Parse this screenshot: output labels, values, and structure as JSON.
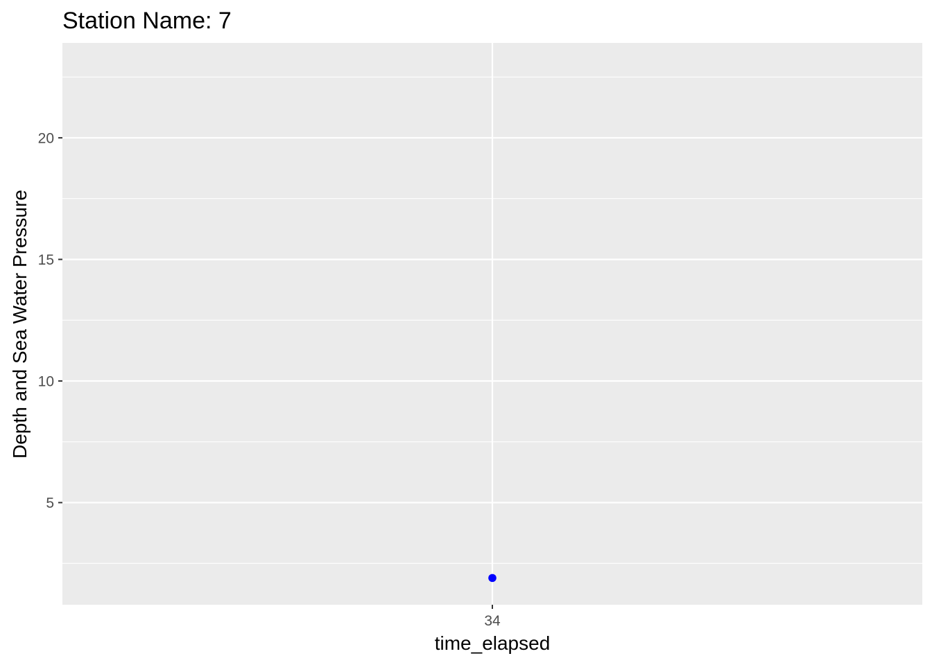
{
  "chart_data": {
    "type": "scatter",
    "title": "Station Name: 7",
    "xlabel": "time_elapsed",
    "ylabel": "Depth and Sea Water Pressure",
    "x_ticks": [
      "34"
    ],
    "y_ticks": [
      5,
      10,
      15,
      20
    ],
    "ylim": [
      0.8,
      23.9
    ],
    "grid": true,
    "points": [
      {
        "x": "34",
        "y": 1.9
      }
    ],
    "colors": {
      "panel_background": "#ebebeb",
      "grid_major": "#ffffff",
      "point": "#0000ff",
      "tick_text": "#4d4d4d",
      "tick_mark": "#333333"
    }
  }
}
